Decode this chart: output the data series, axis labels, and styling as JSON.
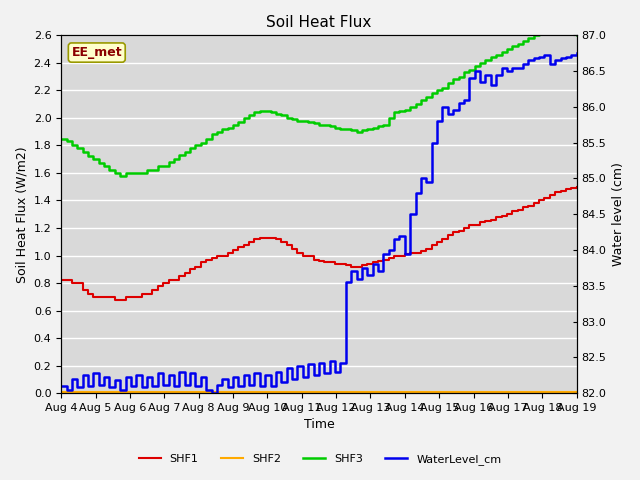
{
  "title": "Soil Heat Flux",
  "ylabel_left": "Soil Heat Flux (W/m2)",
  "ylabel_right": "Water level (cm)",
  "xlabel": "Time",
  "annotation_text": "EE_met",
  "ylim_left": [
    0.0,
    2.6
  ],
  "ylim_right": [
    82.0,
    87.0
  ],
  "xlim": [
    0,
    15
  ],
  "x_tick_labels": [
    "Aug 4",
    "Aug 5",
    "Aug 6",
    "Aug 7",
    "Aug 8",
    "Aug 9",
    "Aug 10",
    "Aug 11",
    "Aug 12",
    "Aug 13",
    "Aug 14",
    "Aug 15",
    "Aug 16",
    "Aug 17",
    "Aug 18",
    "Aug 19"
  ],
  "bg_color": "#d9d9d9",
  "fig_color": "#f2f2f2",
  "grid_color": "#ffffff",
  "shf1_color": "#dd0000",
  "shf2_color": "#ffaa00",
  "shf3_color": "#00cc00",
  "water_color": "#0000ee",
  "shf1_lw": 1.5,
  "shf2_lw": 1.5,
  "shf3_lw": 1.8,
  "water_lw": 1.8,
  "legend_labels": [
    "SHF1",
    "SHF2",
    "SHF3",
    "WaterLevel_cm"
  ],
  "shf1": [
    0.82,
    0.82,
    0.8,
    0.8,
    0.75,
    0.72,
    0.7,
    0.7,
    0.7,
    0.7,
    0.68,
    0.68,
    0.7,
    0.7,
    0.7,
    0.72,
    0.72,
    0.75,
    0.78,
    0.8,
    0.82,
    0.82,
    0.85,
    0.87,
    0.9,
    0.92,
    0.95,
    0.97,
    0.98,
    1.0,
    1.0,
    1.02,
    1.04,
    1.06,
    1.08,
    1.1,
    1.12,
    1.13,
    1.13,
    1.13,
    1.12,
    1.1,
    1.08,
    1.05,
    1.02,
    1.0,
    1.0,
    0.97,
    0.96,
    0.95,
    0.95,
    0.94,
    0.94,
    0.93,
    0.92,
    0.92,
    0.93,
    0.94,
    0.95,
    0.96,
    0.97,
    0.98,
    1.0,
    1.0,
    1.01,
    1.02,
    1.02,
    1.03,
    1.05,
    1.08,
    1.1,
    1.12,
    1.15,
    1.17,
    1.18,
    1.2,
    1.22,
    1.22,
    1.24,
    1.25,
    1.26,
    1.28,
    1.29,
    1.3,
    1.32,
    1.33,
    1.35,
    1.36,
    1.38,
    1.4,
    1.42,
    1.44,
    1.46,
    1.47,
    1.48,
    1.49,
    1.5
  ],
  "shf2": [
    0.01,
    0.01,
    0.01,
    0.01,
    0.01,
    0.01,
    0.01,
    0.01,
    0.01,
    0.01,
    0.01,
    0.01,
    0.01,
    0.01,
    0.01,
    0.01,
    0.01,
    0.01,
    0.01,
    0.01,
    0.01,
    0.01,
    0.01,
    0.01,
    0.01,
    0.01,
    0.01,
    0.01,
    0.01,
    0.01,
    0.01,
    0.01,
    0.01,
    0.01,
    0.01,
    0.01,
    0.01,
    0.01,
    0.01,
    0.01,
    0.01,
    0.01,
    0.01,
    0.01,
    0.01,
    0.01,
    0.01,
    0.01,
    0.01,
    0.01,
    0.01,
    0.01,
    0.01,
    0.01,
    0.01,
    0.01,
    0.01,
    0.01,
    0.01,
    0.01,
    0.01,
    0.01,
    0.01,
    0.01,
    0.01,
    0.01,
    0.01,
    0.01,
    0.01,
    0.01,
    0.01,
    0.01,
    0.01,
    0.01,
    0.01,
    0.01,
    0.01,
    0.01,
    0.01,
    0.01,
    0.01,
    0.01,
    0.01,
    0.01,
    0.01,
    0.01,
    0.01,
    0.01,
    0.01,
    0.01,
    0.01,
    0.01,
    0.01,
    0.01,
    0.01,
    0.01,
    0.01
  ],
  "shf3": [
    1.85,
    1.83,
    1.8,
    1.78,
    1.75,
    1.72,
    1.7,
    1.67,
    1.65,
    1.62,
    1.6,
    1.58,
    1.6,
    1.6,
    1.6,
    1.6,
    1.62,
    1.62,
    1.65,
    1.65,
    1.68,
    1.7,
    1.73,
    1.75,
    1.78,
    1.8,
    1.82,
    1.85,
    1.88,
    1.9,
    1.92,
    1.93,
    1.95,
    1.97,
    2.0,
    2.02,
    2.04,
    2.05,
    2.05,
    2.04,
    2.03,
    2.02,
    2.0,
    1.99,
    1.98,
    1.98,
    1.97,
    1.96,
    1.95,
    1.95,
    1.94,
    1.93,
    1.92,
    1.92,
    1.91,
    1.9,
    1.91,
    1.92,
    1.93,
    1.94,
    1.95,
    2.0,
    2.04,
    2.05,
    2.06,
    2.08,
    2.1,
    2.13,
    2.15,
    2.18,
    2.2,
    2.22,
    2.25,
    2.28,
    2.3,
    2.33,
    2.35,
    2.38,
    2.4,
    2.42,
    2.44,
    2.46,
    2.48,
    2.5,
    2.52,
    2.54,
    2.56,
    2.58,
    2.6,
    2.62,
    2.65,
    2.68,
    2.7,
    2.68,
    2.65,
    2.62,
    2.6
  ],
  "water": [
    82.1,
    82.05,
    82.2,
    82.08,
    82.25,
    82.1,
    82.28,
    82.12,
    82.22,
    82.08,
    82.18,
    82.05,
    82.22,
    82.1,
    82.25,
    82.08,
    82.22,
    82.1,
    82.28,
    82.12,
    82.25,
    82.1,
    82.3,
    82.12,
    82.28,
    82.1,
    82.22,
    82.05,
    82.0,
    82.12,
    82.2,
    82.08,
    82.22,
    82.1,
    82.25,
    82.12,
    82.28,
    82.1,
    82.25,
    82.1,
    82.3,
    82.15,
    82.35,
    82.2,
    82.38,
    82.22,
    82.4,
    82.25,
    82.42,
    82.28,
    82.45,
    82.3,
    82.42,
    83.55,
    83.7,
    83.6,
    83.75,
    83.65,
    83.8,
    83.7,
    83.95,
    84.0,
    84.15,
    84.2,
    83.95,
    84.5,
    84.8,
    85.0,
    84.95,
    85.5,
    85.8,
    86.0,
    85.9,
    85.95,
    86.05,
    86.1,
    86.4,
    86.5,
    86.35,
    86.45,
    86.3,
    86.45,
    86.55,
    86.5,
    86.55,
    86.55,
    86.6,
    86.65,
    86.68,
    86.7,
    86.72,
    86.6,
    86.65,
    86.68,
    86.7,
    86.72,
    86.75
  ]
}
